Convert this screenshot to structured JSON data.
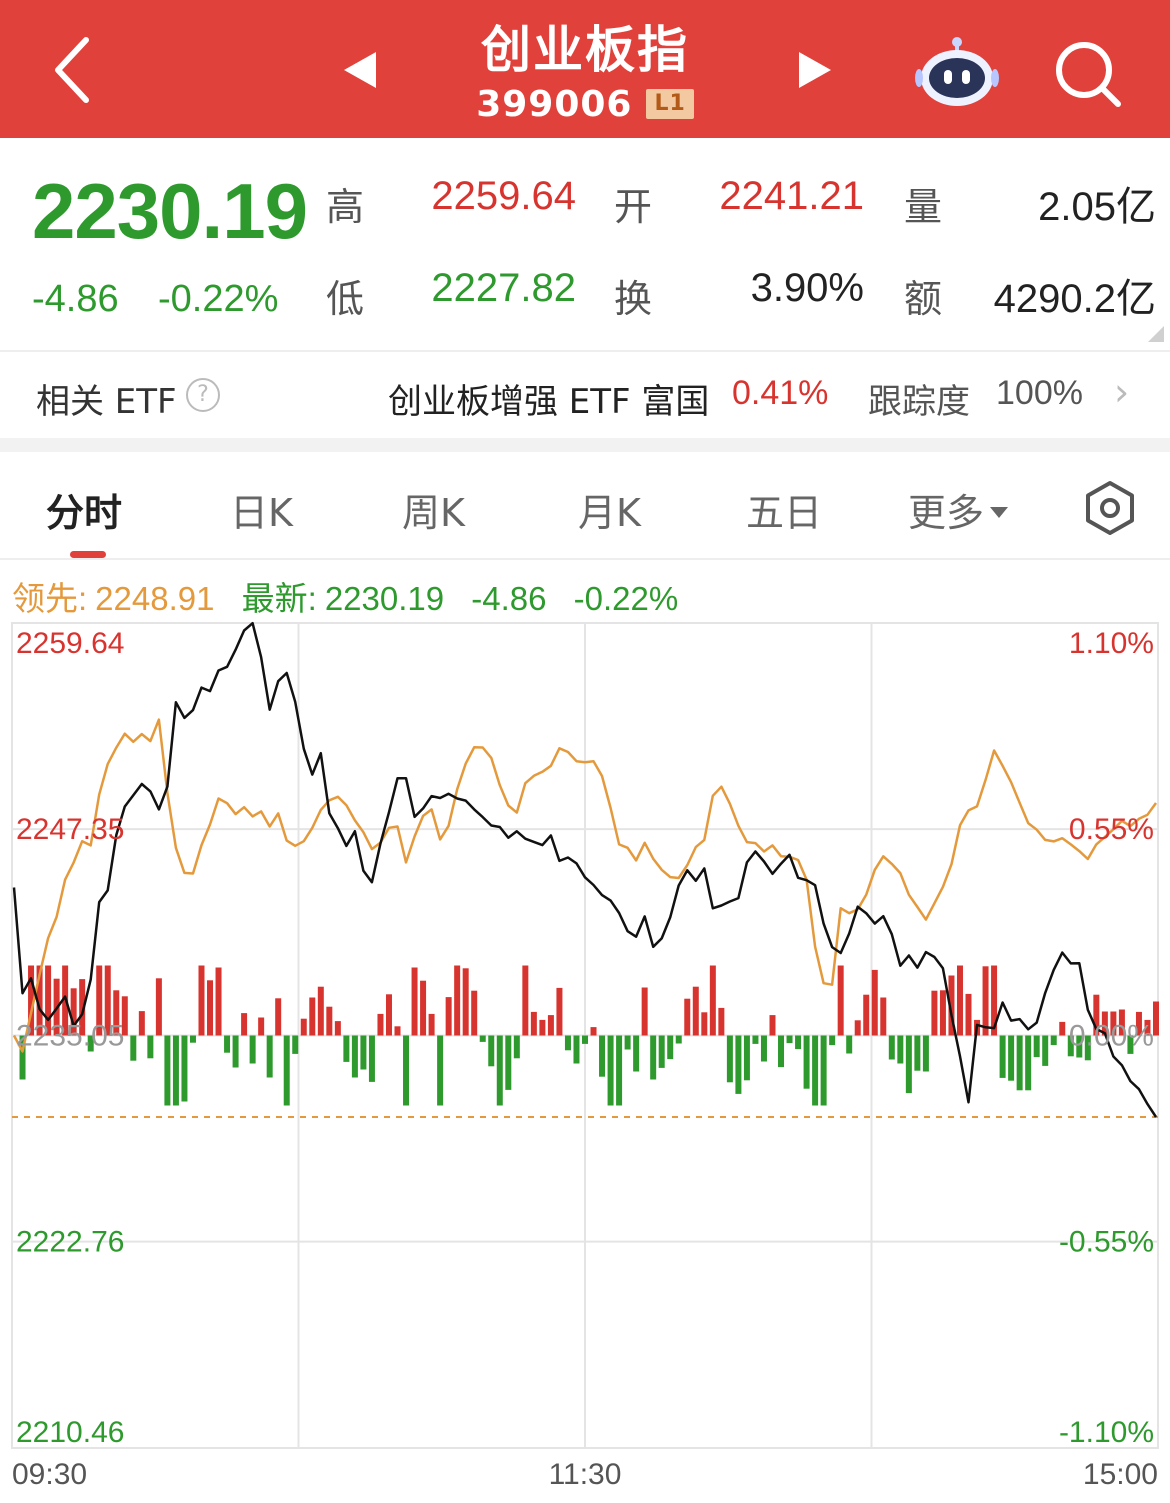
{
  "header": {
    "title": "创业板指",
    "code": "399006",
    "level_badge": "L1",
    "bg_color": "#e0413b"
  },
  "quote": {
    "price": "2230.19",
    "change": "-4.86",
    "change_pct": "-0.22%",
    "high_label": "高",
    "high": "2259.64",
    "low_label": "低",
    "low": "2227.82",
    "open_label": "开",
    "open": "2241.21",
    "turnover_label": "换",
    "turnover": "3.90%",
    "volume_label": "量",
    "volume": "2.05亿",
    "amount_label": "额",
    "amount": "4290.2亿"
  },
  "etf": {
    "label": "相关 ETF",
    "name": "创业板增强 ETF 富国",
    "pct": "0.41%",
    "track_label": "跟踪度",
    "track_value": "100%"
  },
  "tabs": [
    {
      "label": "分时",
      "active": true
    },
    {
      "label": "日K",
      "active": false
    },
    {
      "label": "周K",
      "active": false
    },
    {
      "label": "月K",
      "active": false
    },
    {
      "label": "五日",
      "active": false
    },
    {
      "label": "更多",
      "active": false
    }
  ],
  "info": {
    "lead_label": "领先:",
    "lead_value": "2248.91",
    "latest_label": "最新:",
    "latest_value": "2230.19",
    "latest_change": "-4.86",
    "latest_pct": "-0.22%"
  },
  "colors": {
    "up": "#d8342f",
    "down": "#2e9a2e",
    "lead_line": "#e49a3c",
    "price_line": "#111111"
  },
  "chart_data": {
    "type": "line",
    "prev_close": 2235.05,
    "ylim": [
      2210.46,
      2259.64
    ],
    "y_ticks_left": [
      "2259.64",
      "2247.35",
      "2235.05",
      "2222.76",
      "2210.46"
    ],
    "y_ticks_right": [
      "1.10%",
      "0.55%",
      "0.00%",
      "-0.55%",
      "-1.10%"
    ],
    "x_ticks": [
      "09:30",
      "11:30",
      "15:00"
    ],
    "series": [
      {
        "key": "price",
        "values": [
          2243.87,
          2237.57,
          2238.46,
          2236.62,
          2235.98,
          2236.66,
          2237.37,
          2235.62,
          2236.32,
          2238.38,
          2243.0,
          2243.7,
          2247.0,
          2248.7,
          2249.37,
          2250.04,
          2249.6,
          2248.53,
          2249.89,
          2254.91,
          2253.98,
          2254.45,
          2255.79,
          2255.58,
          2256.81,
          2257.03,
          2258.05,
          2259.19,
          2259.63,
          2257.61,
          2254.47,
          2256.17,
          2256.66,
          2254.94,
          2252.14,
          2250.6,
          2251.88,
          2248.3,
          2247.41,
          2246.35,
          2247.23,
          2244.87,
          2244.19,
          2246.5,
          2248.36,
          2250.38,
          2250.39,
          2248.08,
          2248.59,
          2249.32,
          2249.21,
          2249.46,
          2249.18,
          2249.05,
          2248.53,
          2248.07,
          2247.57,
          2247.48,
          2246.84,
          2247.22,
          2246.78,
          2246.59,
          2246.4,
          2246.98,
          2245.46,
          2245.66,
          2245.31,
          2244.48,
          2244.02,
          2243.42,
          2243.09,
          2242.35,
          2241.27,
          2240.94,
          2242.15,
          2240.34,
          2240.84,
          2242.09,
          2243.99,
          2244.9,
          2244.27,
          2245.01,
          2242.63,
          2242.8,
          2243.04,
          2243.24,
          2245.37,
          2246.02,
          2245.42,
          2244.69,
          2245.29,
          2245.82,
          2244.45,
          2244.31,
          2244.01,
          2241.72,
          2240.32,
          2239.97,
          2241.13,
          2242.73,
          2242.34,
          2241.72,
          2242.16,
          2241.09,
          2239.21,
          2239.82,
          2239.1,
          2240.02,
          2239.73,
          2239.06,
          2236.26,
          2233.81,
          2231.07,
          2235.68,
          2235.54,
          2235.49,
          2237.02,
          2235.94,
          2236.03,
          2235.42,
          2235.82,
          2237.59,
          2238.96,
          2239.99,
          2239.35,
          2239.36,
          2236.59,
          2235.44,
          2235.18,
          2233.8,
          2233.28,
          2232.33,
          2231.85,
          2230.96,
          2230.19
        ]
      },
      {
        "key": "lead",
        "values": [
          2235.05,
          2234.1,
          2236.38,
          2238.68,
          2240.85,
          2242.12,
          2244.34,
          2245.37,
          2246.63,
          2246.38,
          2249.41,
          2251.23,
          2252.21,
          2253.04,
          2252.56,
          2253.02,
          2252.6,
          2253.88,
          2249.51,
          2246.24,
          2244.74,
          2244.71,
          2246.4,
          2247.63,
          2249.18,
          2248.9,
          2248.25,
          2248.66,
          2248.11,
          2248.41,
          2247.51,
          2248.29,
          2246.67,
          2246.36,
          2246.63,
          2247.43,
          2248.5,
          2249.07,
          2249.28,
          2248.77,
          2247.87,
          2247.17,
          2246.16,
          2246.55,
          2247.43,
          2247.51,
          2245.37,
          2246.92,
          2248.14,
          2248.53,
          2246.74,
          2247.55,
          2249.73,
          2251.26,
          2252.23,
          2252.22,
          2251.6,
          2249.97,
          2248.76,
          2248.34,
          2250.09,
          2250.53,
          2250.77,
          2251.13,
          2252.17,
          2251.95,
          2251.4,
          2251.34,
          2251.4,
          2250.52,
          2248.61,
          2246.44,
          2246.24,
          2245.49,
          2246.54,
          2245.59,
          2244.93,
          2244.49,
          2244.44,
          2245.21,
          2246.28,
          2246.71,
          2249.34,
          2249.88,
          2248.86,
          2247.55,
          2246.58,
          2246.52,
          2246.02,
          2246.38,
          2245.74,
          2245.7,
          2245.51,
          2244.33,
          2240.35,
          2238.17,
          2238.08,
          2242.64,
          2242.34,
          2242.57,
          2243.44,
          2244.93,
          2245.73,
          2245.28,
          2244.73,
          2243.44,
          2242.71,
          2241.96,
          2242.93,
          2243.91,
          2245.26,
          2247.58,
          2248.47,
          2248.71,
          2250.29,
          2252.04,
          2251.13,
          2250.15,
          2248.93,
          2247.71,
          2247.32,
          2246.71,
          2246.62,
          2246.81,
          2246.44,
          2246.04,
          2245.57,
          2246.44,
          2246.89,
          2247.34,
          2247.84,
          2247.53,
          2247.97,
          2248.21,
          2248.91
        ]
      }
    ]
  }
}
